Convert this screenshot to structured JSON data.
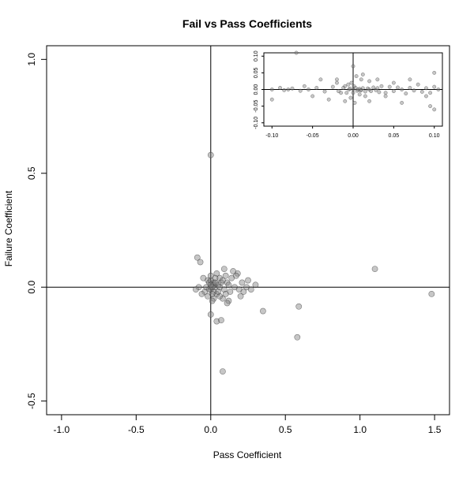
{
  "chart_data": [
    {
      "type": "scatter",
      "title": "Fail vs Pass Coefficients",
      "xlabel": "Pass Coefficient",
      "ylabel": "Failure Coefficient",
      "xlim": [
        -1.1,
        1.6
      ],
      "ylim": [
        -0.56,
        1.06
      ],
      "xticks": [
        -1.0,
        -0.5,
        0.0,
        0.5,
        1.0,
        1.5
      ],
      "xtick_labels": [
        "-1.0",
        "-0.5",
        "0.0",
        "0.5",
        "1.0",
        "1.5"
      ],
      "yticks": [
        -0.5,
        0.0,
        0.5,
        1.0
      ],
      "ytick_labels": [
        "-0.5",
        "0.0",
        "0.5",
        "1.0"
      ],
      "reference_lines": {
        "x": 0,
        "y": 0
      },
      "grid": false,
      "point_color": "#808080",
      "series": [
        {
          "points": [
            [
              0.0,
              0.58
            ],
            [
              1.1,
              0.08
            ],
            [
              1.48,
              -0.03
            ],
            [
              0.59,
              -0.085
            ],
            [
              0.58,
              -0.22
            ],
            [
              0.35,
              -0.105
            ],
            [
              0.08,
              -0.37
            ],
            [
              0.04,
              -0.15
            ],
            [
              0.07,
              -0.145
            ],
            [
              0.0,
              -0.12
            ],
            [
              -0.09,
              0.13
            ],
            [
              -0.07,
              0.11
            ],
            [
              0.3,
              0.01
            ],
            [
              0.25,
              0.03
            ],
            [
              0.22,
              -0.02
            ],
            [
              0.18,
              0.06
            ],
            [
              0.15,
              0.07
            ],
            [
              0.12,
              -0.06
            ],
            [
              0.1,
              0.05
            ],
            [
              0.08,
              -0.05
            ],
            [
              0.06,
              0.04
            ],
            [
              0.04,
              -0.03
            ],
            [
              0.02,
              0.02
            ],
            [
              -0.02,
              0.03
            ],
            [
              -0.04,
              -0.02
            ],
            [
              0.01,
              0.01
            ],
            [
              0.0,
              -0.01
            ],
            [
              0.03,
              0.0
            ],
            [
              -0.01,
              0.02
            ],
            [
              0.02,
              -0.02
            ],
            [
              0.05,
              0.01
            ],
            [
              -0.03,
              0.0
            ],
            [
              0.0,
              0.03
            ],
            [
              0.01,
              -0.03
            ],
            [
              0.0,
              0.0
            ],
            [
              0.02,
              0.01
            ],
            [
              -0.01,
              -0.01
            ],
            [
              0.03,
              0.02
            ],
            [
              0.01,
              0.0
            ],
            [
              0.0,
              0.01
            ],
            [
              0.07,
              0.02
            ],
            [
              0.09,
              -0.01
            ],
            [
              0.11,
              0.02
            ],
            [
              0.13,
              -0.02
            ],
            [
              0.16,
              0.0
            ],
            [
              0.19,
              -0.01
            ],
            [
              0.21,
              0.02
            ],
            [
              0.14,
              0.04
            ],
            [
              0.06,
              -0.04
            ],
            [
              -0.05,
              0.04
            ],
            [
              -0.06,
              -0.03
            ],
            [
              -0.08,
              0.0
            ],
            [
              -0.1,
              -0.01
            ],
            [
              0.04,
              0.06
            ],
            [
              0.02,
              -0.05
            ],
            [
              0.08,
              0.03
            ],
            [
              0.1,
              -0.03
            ],
            [
              0.12,
              0.01
            ],
            [
              0.05,
              -0.02
            ],
            [
              0.03,
              0.04
            ],
            [
              -0.02,
              -0.04
            ],
            [
              0.0,
              0.05
            ],
            [
              0.01,
              -0.06
            ],
            [
              0.06,
              0.0
            ],
            [
              0.17,
              0.05
            ],
            [
              0.2,
              -0.04
            ],
            [
              0.24,
              0.0
            ],
            [
              0.27,
              -0.01
            ],
            [
              0.09,
              0.08
            ],
            [
              0.11,
              -0.07
            ]
          ]
        }
      ]
    },
    {
      "type": "scatter",
      "title": "",
      "xlabel": "",
      "ylabel": "",
      "xlim": [
        -0.11,
        0.11
      ],
      "ylim": [
        -0.11,
        0.11
      ],
      "xticks": [
        -0.1,
        -0.05,
        0.0,
        0.05,
        0.1
      ],
      "xtick_labels": [
        "-0.10",
        "-0.05",
        "0.00",
        "0.05",
        "0.10"
      ],
      "yticks": [
        -0.1,
        -0.05,
        0.0,
        0.05,
        0.1
      ],
      "ytick_labels": [
        "-0.10",
        "-0.05",
        "0.00",
        "0.05",
        "0.10"
      ],
      "reference_lines": {
        "x": 0,
        "y": 0
      },
      "grid": false,
      "point_color": "#808080",
      "series": [
        {
          "points": [
            [
              -0.07,
              0.11
            ],
            [
              0.0,
              0.07
            ],
            [
              -0.1,
              -0.03
            ],
            [
              -0.08,
              0.0
            ],
            [
              -0.06,
              0.01
            ],
            [
              -0.05,
              -0.02
            ],
            [
              -0.04,
              0.03
            ],
            [
              -0.03,
              -0.03
            ],
            [
              -0.02,
              0.02
            ],
            [
              -0.015,
              -0.01
            ],
            [
              -0.01,
              0.01
            ],
            [
              -0.005,
              0.0
            ],
            [
              0.0,
              0.0
            ],
            [
              0.003,
              0.005
            ],
            [
              0.005,
              -0.004
            ],
            [
              0.008,
              0.002
            ],
            [
              0.01,
              -0.002
            ],
            [
              0.012,
              0.004
            ],
            [
              0.015,
              -0.006
            ],
            [
              0.018,
              0.003
            ],
            [
              0.02,
              0.0
            ],
            [
              0.022,
              -0.005
            ],
            [
              0.025,
              0.006
            ],
            [
              0.028,
              -0.002
            ],
            [
              0.03,
              0.004
            ],
            [
              0.032,
              -0.008
            ],
            [
              0.035,
              0.01
            ],
            [
              0.04,
              -0.01
            ],
            [
              0.045,
              0.008
            ],
            [
              0.05,
              -0.005
            ],
            [
              0.055,
              0.006
            ],
            [
              0.06,
              0.0
            ],
            [
              0.065,
              -0.012
            ],
            [
              0.07,
              0.005
            ],
            [
              0.075,
              -0.003
            ],
            [
              0.08,
              0.015
            ],
            [
              0.085,
              -0.007
            ],
            [
              0.09,
              0.004
            ],
            [
              0.095,
              -0.01
            ],
            [
              0.1,
              0.008
            ],
            [
              0.105,
              0.0
            ],
            [
              0.1,
              0.05
            ],
            [
              0.095,
              -0.05
            ],
            [
              0.1,
              -0.06
            ],
            [
              0.09,
              -0.02
            ],
            [
              0.07,
              0.03
            ],
            [
              0.06,
              -0.04
            ],
            [
              0.05,
              0.02
            ],
            [
              0.04,
              -0.02
            ],
            [
              0.03,
              0.03
            ],
            [
              0.02,
              0.025
            ],
            [
              0.015,
              -0.02
            ],
            [
              0.01,
              0.03
            ],
            [
              0.008,
              -0.015
            ],
            [
              -0.002,
              0.02
            ],
            [
              -0.003,
              -0.025
            ],
            [
              -0.006,
              0.015
            ],
            [
              -0.008,
              -0.01
            ],
            [
              -0.012,
              0.005
            ],
            [
              -0.018,
              -0.005
            ],
            [
              -0.025,
              0.008
            ],
            [
              -0.035,
              -0.006
            ],
            [
              -0.045,
              0.005
            ],
            [
              -0.055,
              0.0
            ],
            [
              -0.065,
              -0.004
            ],
            [
              -0.075,
              0.003
            ],
            [
              -0.085,
              -0.002
            ],
            [
              -0.09,
              0.005
            ],
            [
              -0.1,
              0.0
            ],
            [
              0.002,
              -0.04
            ],
            [
              0.004,
              0.04
            ],
            [
              0.012,
              0.045
            ],
            [
              0.02,
              -0.035
            ],
            [
              -0.01,
              -0.035
            ],
            [
              -0.02,
              0.03
            ],
            [
              0.0,
              -0.01
            ],
            [
              0.001,
              0.01
            ],
            [
              0.006,
              0.0
            ],
            [
              -0.004,
              0.003
            ],
            [
              0.009,
              -0.003
            ]
          ]
        }
      ]
    }
  ]
}
